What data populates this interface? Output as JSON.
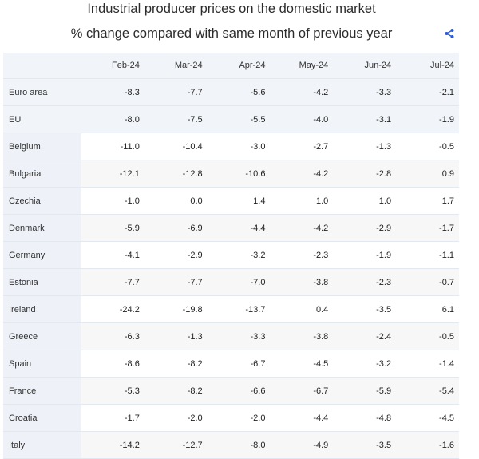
{
  "chart_data": {
    "type": "table",
    "title": "Industrial producer prices on the domestic market",
    "subtitle": "% change compared with same month of previous year",
    "columns": [
      "Feb-24",
      "Mar-24",
      "Apr-24",
      "May-24",
      "Jun-24",
      "Jul-24"
    ],
    "rows": [
      {
        "label": "Euro area",
        "values": [
          "-8.3",
          "-7.7",
          "-5.6",
          "-4.2",
          "-3.3",
          "-2.1"
        ]
      },
      {
        "label": "EU",
        "values": [
          "-8.0",
          "-7.5",
          "-5.5",
          "-4.0",
          "-3.1",
          "-1.9"
        ]
      },
      {
        "label": "Belgium",
        "values": [
          "-11.0",
          "-10.4",
          "-3.0",
          "-2.7",
          "-1.3",
          "-0.5"
        ]
      },
      {
        "label": "Bulgaria",
        "values": [
          "-12.1",
          "-12.8",
          "-10.6",
          "-4.2",
          "-2.8",
          "0.9"
        ]
      },
      {
        "label": "Czechia",
        "values": [
          "-1.0",
          "0.0",
          "1.4",
          "1.0",
          "1.0",
          "1.7"
        ]
      },
      {
        "label": "Denmark",
        "values": [
          "-5.9",
          "-6.9",
          "-4.4",
          "-4.2",
          "-2.9",
          "-1.7"
        ]
      },
      {
        "label": "Germany",
        "values": [
          "-4.1",
          "-2.9",
          "-3.2",
          "-2.3",
          "-1.9",
          "-1.1"
        ]
      },
      {
        "label": "Estonia",
        "values": [
          "-7.7",
          "-7.7",
          "-7.0",
          "-3.8",
          "-2.3",
          "-0.7"
        ]
      },
      {
        "label": "Ireland",
        "values": [
          "-24.2",
          "-19.8",
          "-13.7",
          "0.4",
          "-3.5",
          "6.1"
        ]
      },
      {
        "label": "Greece",
        "values": [
          "-6.3",
          "-1.3",
          "-3.3",
          "-3.8",
          "-2.4",
          "-0.5"
        ]
      },
      {
        "label": "Spain",
        "values": [
          "-8.6",
          "-8.2",
          "-6.7",
          "-4.5",
          "-3.2",
          "-1.4"
        ]
      },
      {
        "label": "France",
        "values": [
          "-5.3",
          "-8.2",
          "-6.6",
          "-6.7",
          "-5.9",
          "-5.4"
        ]
      },
      {
        "label": "Croatia",
        "values": [
          "-1.7",
          "-2.0",
          "-2.0",
          "-4.4",
          "-4.8",
          "-4.5"
        ]
      },
      {
        "label": "Italy",
        "values": [
          "-14.2",
          "-12.7",
          "-8.0",
          "-4.9",
          "-3.5",
          "-1.6"
        ]
      }
    ]
  },
  "icons": {
    "share": "share-icon"
  },
  "colors": {
    "accent": "#2a5bd7",
    "header_bg": "#f1f4f9",
    "alt_row_bg": "#f7f7f7"
  }
}
